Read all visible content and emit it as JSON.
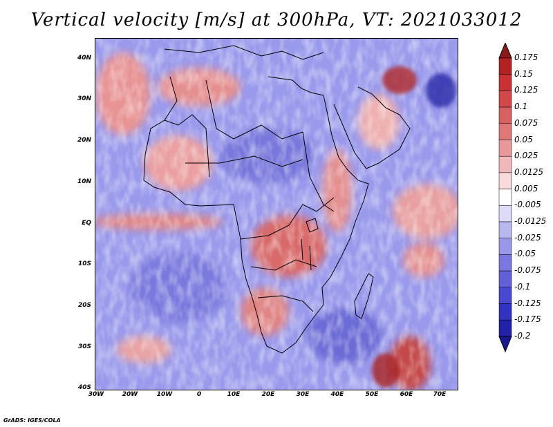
{
  "title": "Vertical velocity [m/s] at 300hPa, VT: 2021033012",
  "credit": "GrADS: IGES/COLA",
  "map": {
    "region": "Africa",
    "lat_labels": [
      "40N",
      "30N",
      "20N",
      "10N",
      "EQ",
      "10S",
      "20S",
      "30S",
      "40S"
    ],
    "lon_labels": [
      "30W",
      "20W",
      "10W",
      "0",
      "10E",
      "20E",
      "30E",
      "40E",
      "50E",
      "60E",
      "70E"
    ],
    "lat_range": [
      -40,
      45
    ],
    "lon_range": [
      -30,
      75
    ]
  },
  "colorbar": {
    "labels": [
      "0.175",
      "0.15",
      "0.125",
      "0.1",
      "0.075",
      "0.05",
      "0.025",
      "0.0125",
      "0.005",
      "-0.005",
      "-0.0125",
      "-0.025",
      "-0.05",
      "-0.075",
      "-0.1",
      "-0.125",
      "-0.175",
      "-0.2"
    ],
    "colors": [
      "#8b1a1a",
      "#b22222",
      "#c83232",
      "#d04848",
      "#d86060",
      "#e07878",
      "#e89898",
      "#f0b8b8",
      "#f8dcdc",
      "#ffffff",
      "#dcdcf8",
      "#b8b8f0",
      "#9898e8",
      "#7878e0",
      "#6060d8",
      "#4848d0",
      "#3232c0",
      "#2222a8",
      "#181890"
    ]
  }
}
